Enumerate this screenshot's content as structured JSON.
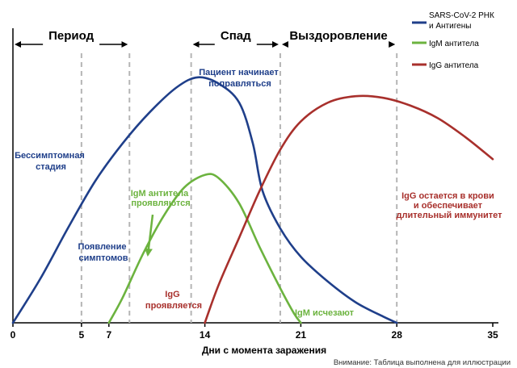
{
  "chart_data": {
    "type": "line",
    "xlabel": "Дни с момента заражения",
    "xlim": [
      0,
      35
    ],
    "ylim": [
      0,
      1
    ],
    "x_ticks": [
      0,
      5,
      7,
      14,
      21,
      28,
      35
    ],
    "grid": false,
    "legend_position": "top-right",
    "phase_lines": [
      5,
      8.5,
      13,
      19.5,
      28
    ],
    "phases": [
      {
        "label": "Период",
        "from": 0,
        "to": 8.5
      },
      {
        "label": "Спад",
        "from": 13,
        "to": 19.5
      },
      {
        "label": "Выздоровление",
        "from": 19.5,
        "to": 28
      }
    ],
    "series": [
      {
        "name": "SARS-CoV-2 РНК и Антигены",
        "color": "#1f3f8a",
        "points": [
          [
            0,
            0
          ],
          [
            2,
            0.14
          ],
          [
            4,
            0.3
          ],
          [
            6,
            0.45
          ],
          [
            8,
            0.57
          ],
          [
            10,
            0.67
          ],
          [
            12,
            0.75
          ],
          [
            13.5,
            0.78
          ],
          [
            15,
            0.76
          ],
          [
            16.5,
            0.7
          ],
          [
            17.5,
            0.57
          ],
          [
            18.2,
            0.42
          ],
          [
            19.5,
            0.3
          ],
          [
            21,
            0.21
          ],
          [
            23,
            0.13
          ],
          [
            25,
            0.065
          ],
          [
            27,
            0.02
          ],
          [
            28,
            0
          ]
        ]
      },
      {
        "name": "IgM антитела",
        "color": "#6cb33f",
        "points": [
          [
            7,
            0
          ],
          [
            8,
            0.08
          ],
          [
            9.5,
            0.22
          ],
          [
            11,
            0.34
          ],
          [
            12.5,
            0.43
          ],
          [
            14,
            0.47
          ],
          [
            15,
            0.46
          ],
          [
            16.5,
            0.38
          ],
          [
            18,
            0.24
          ],
          [
            19.5,
            0.11
          ],
          [
            20.5,
            0.03
          ],
          [
            21,
            0
          ]
        ]
      },
      {
        "name": "IgG антитела",
        "color": "#a8302c",
        "points": [
          [
            14,
            0
          ],
          [
            15,
            0.12
          ],
          [
            16.5,
            0.27
          ],
          [
            18,
            0.42
          ],
          [
            19.5,
            0.55
          ],
          [
            21,
            0.64
          ],
          [
            23,
            0.7
          ],
          [
            25,
            0.72
          ],
          [
            27,
            0.715
          ],
          [
            29,
            0.69
          ],
          [
            31,
            0.65
          ],
          [
            33,
            0.59
          ],
          [
            35,
            0.52
          ]
        ]
      }
    ],
    "annotations": [
      {
        "text": "Бессимптомная стадия",
        "color": "#1f3f8a"
      },
      {
        "text": "Пациент начинает поправляться",
        "color": "#1f3f8a"
      },
      {
        "text": "Появление симптомов",
        "color": "#1f3f8a"
      },
      {
        "text": "IgM антитела проявляются",
        "color": "#6cb33f"
      },
      {
        "text": "IgG проявляется",
        "color": "#a8302c"
      },
      {
        "text": "IgM исчезают",
        "color": "#6cb33f"
      },
      {
        "text": "IgG остается в крови и обеспечивает длительный иммунитет",
        "color": "#a8302c"
      }
    ]
  },
  "labels": {
    "asymptomatic": [
      "Бессимптомная",
      "стадия"
    ],
    "recovering": [
      "Пациент начинает",
      "поправляться"
    ],
    "symptoms": [
      "Появление",
      "симптомов"
    ],
    "igm_appear": [
      "IgM антитела",
      "проявляются"
    ],
    "igg_appear": [
      "IgG",
      "проявляется"
    ],
    "igm_vanish": "IgM исчезают",
    "igg_remains": [
      "IgG остается в крови",
      "и обеспечивает",
      "длительный иммунитет"
    ],
    "legend_rna": [
      "SARS-CoV-2 РНК",
      "и Антигены"
    ],
    "legend_igm": "IgM антитела",
    "legend_igg": "IgG антитела",
    "footnote": "Внимание: Таблица выполнена для иллюстрации"
  }
}
